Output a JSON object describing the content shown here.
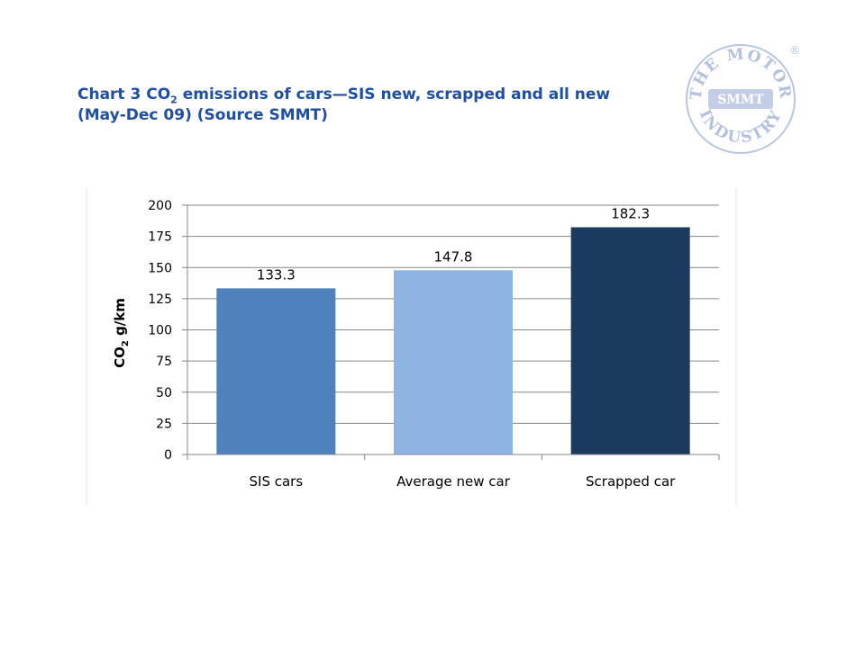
{
  "slide": {
    "title_line1_pre": "Chart 3 CO",
    "title_sub": "2",
    "title_line1_post": " emissions of cars—SIS new, scrapped and  all new",
    "title_line2": "(May-Dec 09) (Source SMMT)"
  },
  "logo": {
    "text_top": "THE MOTOR",
    "text_bottom": "INDUSTRY",
    "center": "SMMT",
    "registered": "®",
    "color": "#a8b8d8"
  },
  "chart_data": {
    "type": "bar",
    "categories": [
      "SIS cars",
      "Average new car",
      "Scrapped car"
    ],
    "values": [
      133.3,
      147.8,
      182.3
    ],
    "data_labels": [
      "133.3",
      "147.8",
      "182.3"
    ],
    "colors": [
      "#4f81bd",
      "#8eb4e3",
      "#1b3a5f"
    ],
    "ylabel_pre": "CO",
    "ylabel_sub": "2",
    "ylabel_post": " g/km",
    "ylim": [
      0,
      200
    ],
    "yticks": [
      0,
      25,
      50,
      75,
      100,
      125,
      150,
      175,
      200
    ],
    "grid": true,
    "legend": "none"
  }
}
